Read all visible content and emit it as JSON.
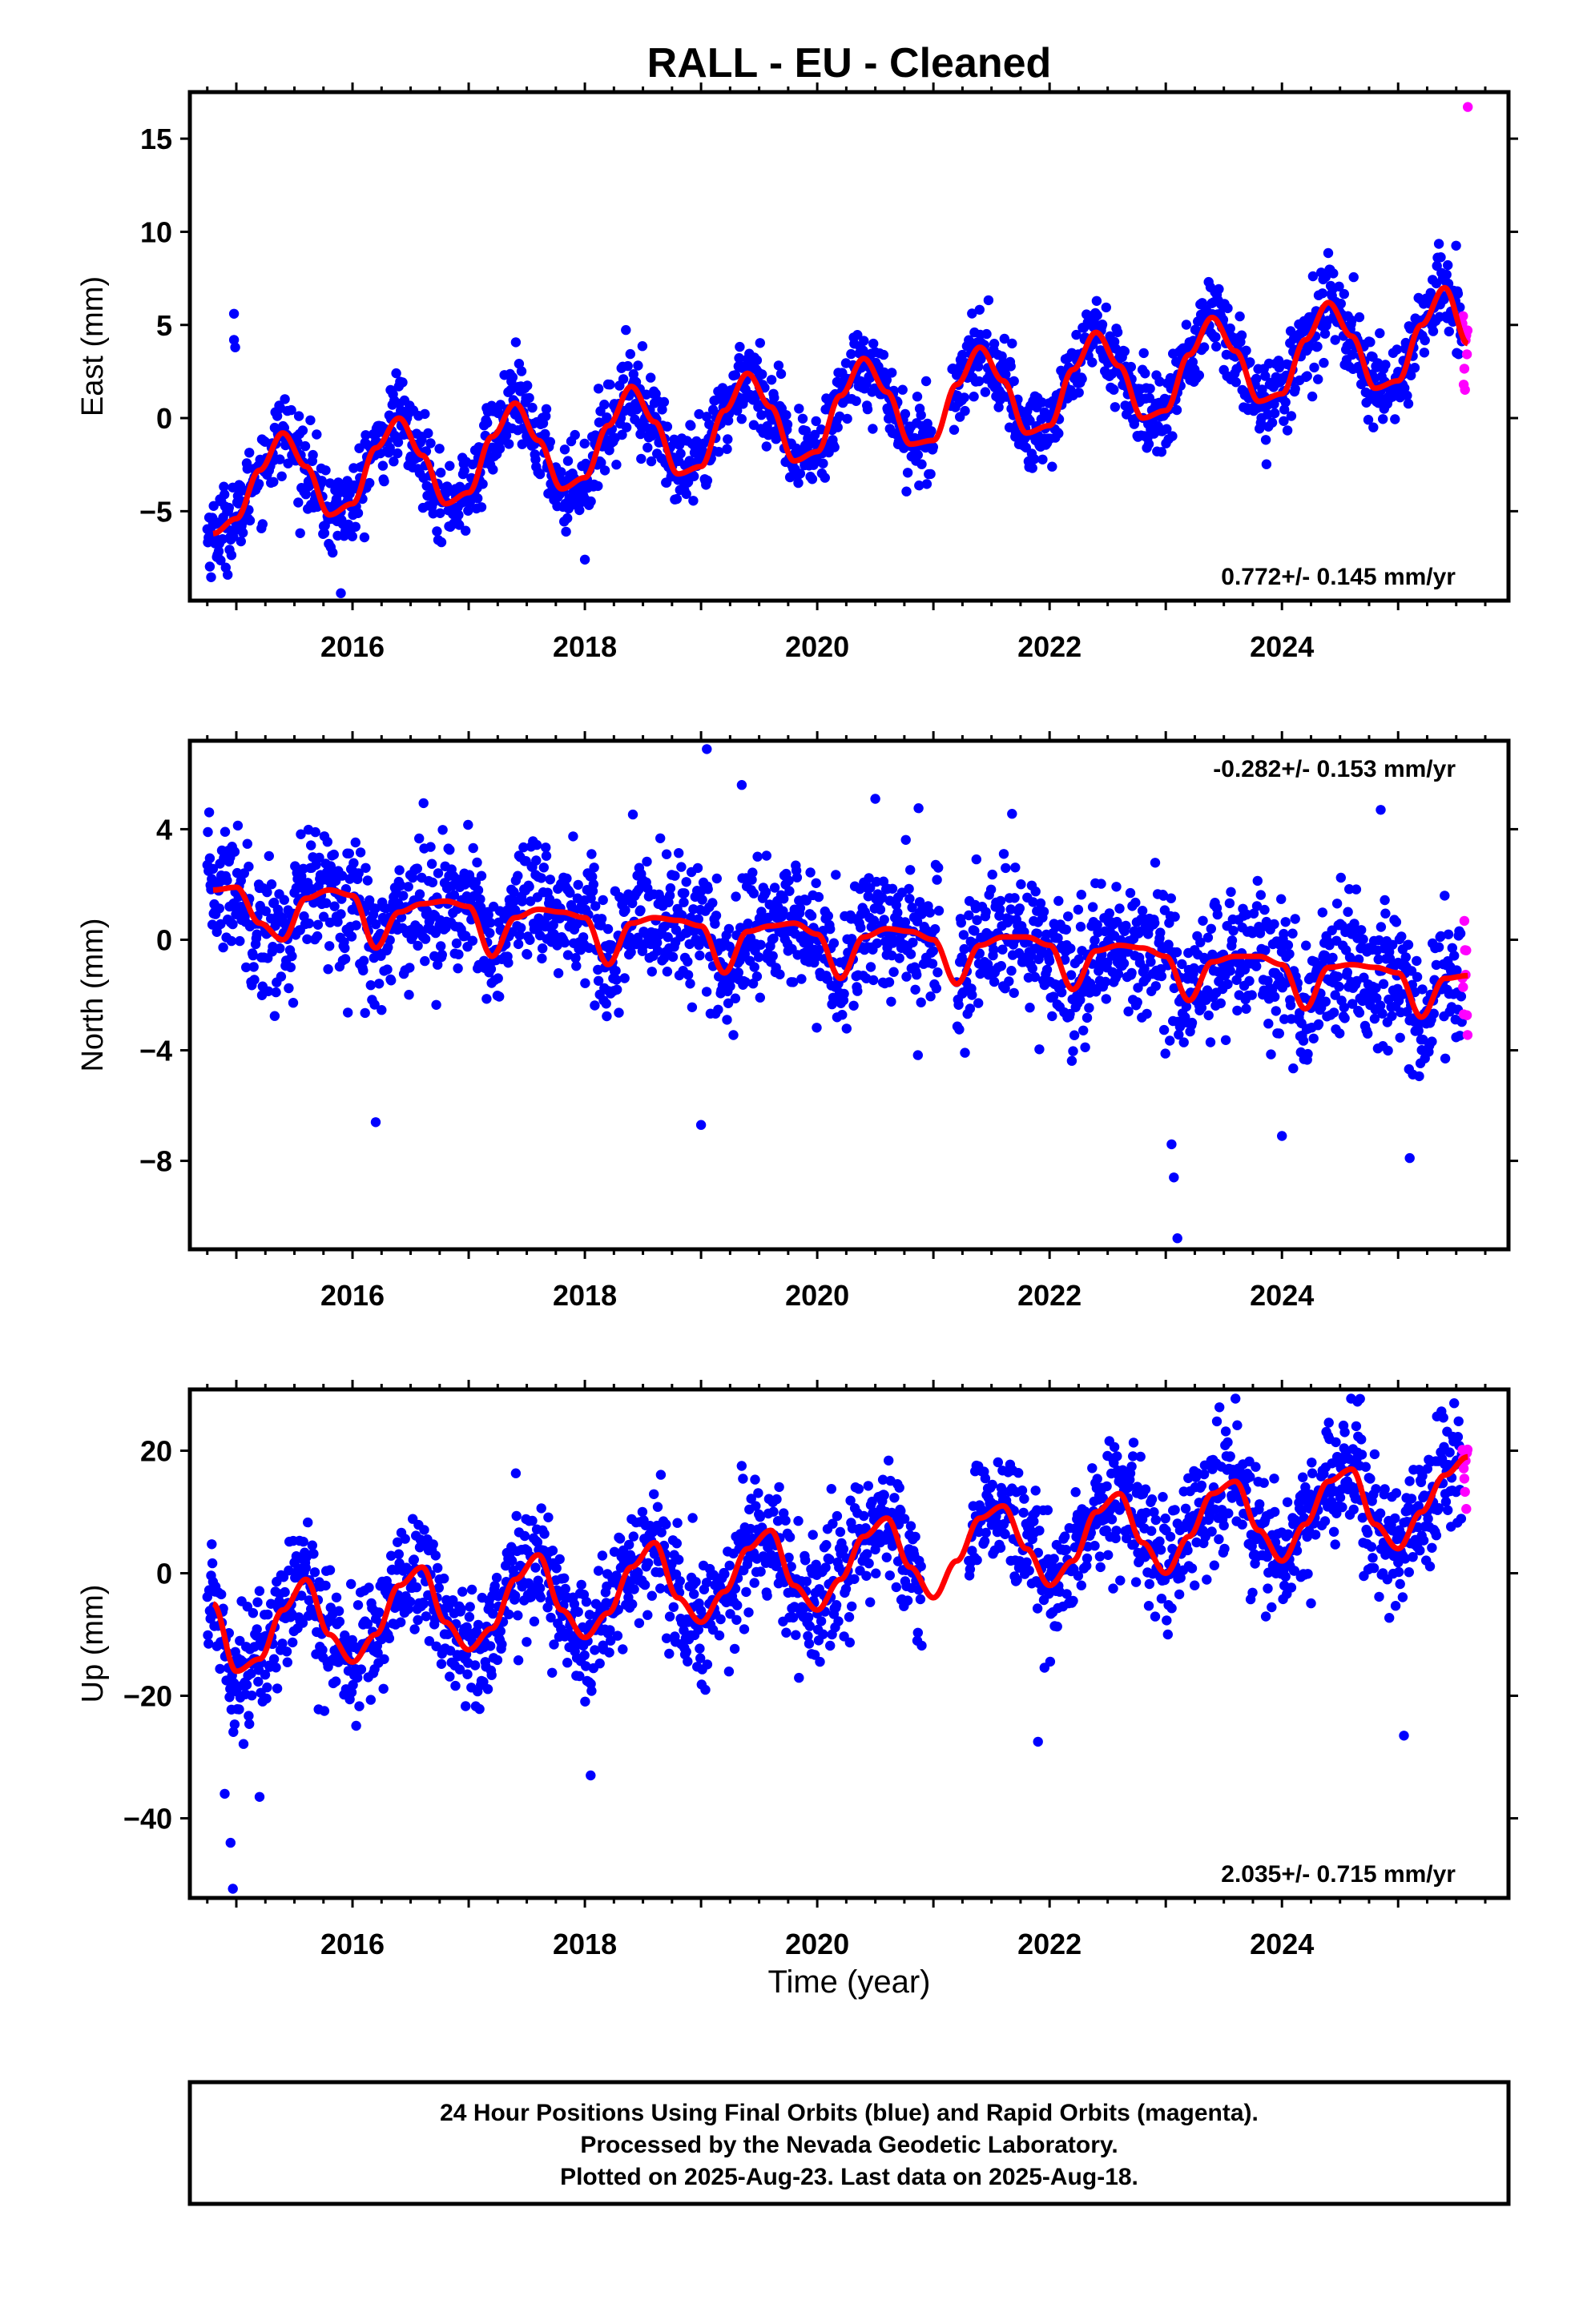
{
  "title": "RALL  - EU - Cleaned",
  "xlabel": "Time (year)",
  "colors": {
    "final": "#0000ff",
    "rapid": "#ff00ff",
    "model": "#ff0000",
    "frame": "#000000"
  },
  "footer": {
    "line1": "24 Hour Positions Using Final Orbits (blue) and Rapid Orbits (magenta).",
    "line2": "Processed by the Nevada Geodetic Laboratory.",
    "line3": "Plotted on 2025-Aug-23. Last data on 2025-Aug-18."
  },
  "chart_data": [
    {
      "type": "scatter",
      "component": "east",
      "ylabel": "East (mm)",
      "xlim": [
        2014.6,
        2025.95
      ],
      "ylim": [
        -9.8,
        17.5
      ],
      "xticks": [
        2016,
        2018,
        2020,
        2022,
        2024
      ],
      "xtick_labels": [
        "2016",
        "2018",
        "2020",
        "2022",
        "2024"
      ],
      "yticks": [
        -5,
        0,
        5,
        10,
        15
      ],
      "ytick_labels": [
        "−5",
        "0",
        "5",
        "10",
        "15"
      ],
      "rate_label": "0.772+/- 0.145 mm/yr",
      "rate_position": "bottom-right",
      "data_span": [
        2014.75,
        2025.6
      ],
      "rapid_from": 2025.55,
      "model": {
        "x": [
          2014.8,
          2015.0,
          2015.2,
          2015.4,
          2015.6,
          2015.8,
          2016.0,
          2016.2,
          2016.4,
          2016.6,
          2016.8,
          2017.0,
          2017.2,
          2017.4,
          2017.6,
          2017.8,
          2018.0,
          2018.2,
          2018.4,
          2018.6,
          2018.8,
          2019.0,
          2019.2,
          2019.4,
          2019.6,
          2019.8,
          2020.0,
          2020.2,
          2020.4,
          2020.6,
          2020.8,
          2021.0,
          2021.2,
          2021.4,
          2021.6,
          2021.8,
          2022.0,
          2022.2,
          2022.4,
          2022.6,
          2022.8,
          2023.0,
          2023.2,
          2023.4,
          2023.6,
          2023.8,
          2024.0,
          2024.2,
          2024.4,
          2024.6,
          2024.8,
          2025.0,
          2025.2,
          2025.4,
          2025.6
        ],
        "y": [
          -6.2,
          -5.4,
          -2.8,
          -0.8,
          -2.6,
          -5.2,
          -4.6,
          -1.6,
          0.0,
          -2.0,
          -4.6,
          -4.0,
          -1.0,
          0.8,
          -1.2,
          -3.8,
          -3.2,
          -0.4,
          1.7,
          -0.2,
          -3.0,
          -2.6,
          0.4,
          2.4,
          0.6,
          -2.3,
          -1.8,
          1.2,
          3.2,
          1.4,
          -1.4,
          -1.2,
          1.8,
          3.8,
          2.0,
          -0.8,
          -0.4,
          2.6,
          4.6,
          2.8,
          0.0,
          0.4,
          3.4,
          5.4,
          3.6,
          0.9,
          1.3,
          4.2,
          6.2,
          4.4,
          1.6,
          2.0,
          5.0,
          7.0,
          4.0
        ]
      },
      "seasonal_amplitude": 2.6,
      "noise_sd": 1.1,
      "outliers": [
        {
          "x": 2014.98,
          "y": 5.6
        },
        {
          "x": 2014.98,
          "y": 4.2
        },
        {
          "x": 2014.99,
          "y": 3.8
        },
        {
          "x": 2015.9,
          "y": -9.4
        },
        {
          "x": 2018.0,
          "y": -7.6
        },
        {
          "x": 2025.6,
          "y": 16.7
        }
      ]
    },
    {
      "type": "scatter",
      "component": "north",
      "ylabel": "North (mm)",
      "xlim": [
        2014.6,
        2025.95
      ],
      "ylim": [
        -11.2,
        7.2
      ],
      "xticks": [
        2016,
        2018,
        2020,
        2022,
        2024
      ],
      "xtick_labels": [
        "2016",
        "2018",
        "2020",
        "2022",
        "2024"
      ],
      "yticks": [
        -8,
        -4,
        0,
        4
      ],
      "ytick_labels": [
        "−8",
        "−4",
        "0",
        "4"
      ],
      "rate_label": "-0.282+/- 0.153 mm/yr",
      "rate_position": "top-right",
      "data_span": [
        2014.75,
        2025.6
      ],
      "rapid_from": 2025.55,
      "model": {
        "x": [
          2014.8,
          2015.0,
          2015.2,
          2015.4,
          2015.6,
          2015.8,
          2016.0,
          2016.2,
          2016.4,
          2016.6,
          2016.8,
          2017.0,
          2017.2,
          2017.4,
          2017.6,
          2017.8,
          2018.0,
          2018.2,
          2018.4,
          2018.6,
          2018.8,
          2019.0,
          2019.2,
          2019.4,
          2019.6,
          2019.8,
          2020.0,
          2020.2,
          2020.4,
          2020.6,
          2020.8,
          2021.0,
          2021.2,
          2021.4,
          2021.6,
          2021.8,
          2022.0,
          2022.2,
          2022.4,
          2022.6,
          2022.8,
          2023.0,
          2023.2,
          2023.4,
          2023.6,
          2023.8,
          2024.0,
          2024.2,
          2024.4,
          2024.6,
          2024.8,
          2025.0,
          2025.2,
          2025.4,
          2025.6
        ],
        "y": [
          1.8,
          1.9,
          0.6,
          0.0,
          1.5,
          1.8,
          1.6,
          -0.3,
          1.0,
          1.3,
          1.4,
          1.2,
          -0.6,
          0.8,
          1.1,
          1.0,
          0.8,
          -0.9,
          0.6,
          0.8,
          0.7,
          0.5,
          -1.2,
          0.3,
          0.5,
          0.6,
          0.2,
          -1.4,
          0.1,
          0.4,
          0.3,
          0.0,
          -1.6,
          -0.2,
          0.1,
          0.1,
          -0.2,
          -1.8,
          -0.4,
          -0.2,
          -0.3,
          -0.6,
          -2.2,
          -0.8,
          -0.6,
          -0.6,
          -0.9,
          -2.5,
          -1.0,
          -0.9,
          -1.0,
          -1.2,
          -2.8,
          -1.4,
          -1.3
        ]
      },
      "seasonal_amplitude": 0,
      "noise_sd": 1.2,
      "outliers": [
        {
          "x": 2019.05,
          "y": 6.9
        },
        {
          "x": 2019.0,
          "y": -6.7
        },
        {
          "x": 2016.2,
          "y": -6.6
        },
        {
          "x": 2023.05,
          "y": -7.4
        },
        {
          "x": 2023.07,
          "y": -8.6
        },
        {
          "x": 2023.1,
          "y": -10.8
        },
        {
          "x": 2024.0,
          "y": -7.1
        },
        {
          "x": 2025.1,
          "y": -7.9
        },
        {
          "x": 2019.35,
          "y": 5.6
        },
        {
          "x": 2020.5,
          "y": 5.1
        },
        {
          "x": 2024.85,
          "y": 4.7
        }
      ]
    },
    {
      "type": "scatter",
      "component": "up",
      "ylabel": "Up (mm)",
      "xlim": [
        2014.6,
        2025.95
      ],
      "ylim": [
        -53,
        30
      ],
      "xticks": [
        2016,
        2018,
        2020,
        2022,
        2024
      ],
      "xtick_labels": [
        "2016",
        "2018",
        "2020",
        "2022",
        "2024"
      ],
      "yticks": [
        -40,
        -20,
        0,
        20
      ],
      "ytick_labels": [
        "−40",
        "−20",
        "0",
        "20"
      ],
      "rate_label": "2.035+/- 0.715 mm/yr",
      "rate_position": "bottom-right",
      "data_span": [
        2014.75,
        2025.6
      ],
      "rapid_from": 2025.55,
      "model": {
        "x": [
          2014.8,
          2015.0,
          2015.2,
          2015.4,
          2015.6,
          2015.8,
          2016.0,
          2016.2,
          2016.4,
          2016.6,
          2016.8,
          2017.0,
          2017.2,
          2017.4,
          2017.6,
          2017.8,
          2018.0,
          2018.2,
          2018.4,
          2018.6,
          2018.8,
          2019.0,
          2019.2,
          2019.4,
          2019.6,
          2019.8,
          2020.0,
          2020.2,
          2020.4,
          2020.6,
          2020.8,
          2021.0,
          2021.2,
          2021.4,
          2021.6,
          2021.8,
          2022.0,
          2022.2,
          2022.4,
          2022.6,
          2022.8,
          2023.0,
          2023.2,
          2023.4,
          2023.6,
          2023.8,
          2024.0,
          2024.2,
          2024.4,
          2024.6,
          2024.8,
          2025.0,
          2025.2,
          2025.4,
          2025.6
        ],
        "y": [
          -5.0,
          -16.0,
          -14.0,
          -6.0,
          -1.0,
          -10.0,
          -14.5,
          -10.0,
          -2.0,
          1.0,
          -8.0,
          -12.5,
          -9.0,
          -1.0,
          3.0,
          -6.0,
          -10.5,
          -6.5,
          1.0,
          5.0,
          -4.0,
          -8.0,
          -3.0,
          4.0,
          7.0,
          -2.0,
          -6.0,
          -1.0,
          6.0,
          9.0,
          1.0,
          -4.0,
          2.0,
          9.0,
          11.0,
          4.0,
          -2.0,
          2.0,
          10.0,
          13.0,
          5.0,
          0.0,
          6.0,
          13.0,
          15.0,
          7.0,
          2.0,
          8.0,
          15.0,
          17.0,
          8.0,
          4.0,
          10.0,
          16.0,
          19.0
        ]
      },
      "seasonal_amplitude": 0,
      "noise_sd": 5.0,
      "outliers": [
        {
          "x": 2014.95,
          "y": -44.0
        },
        {
          "x": 2014.97,
          "y": -51.5
        },
        {
          "x": 2014.9,
          "y": -36.0
        },
        {
          "x": 2015.2,
          "y": -36.5
        },
        {
          "x": 2021.9,
          "y": -27.5
        },
        {
          "x": 2025.05,
          "y": -26.5
        },
        {
          "x": 2018.05,
          "y": -33.0
        },
        {
          "x": 2023.6,
          "y": 28.5
        },
        {
          "x": 2024.65,
          "y": 28.0
        }
      ]
    }
  ]
}
